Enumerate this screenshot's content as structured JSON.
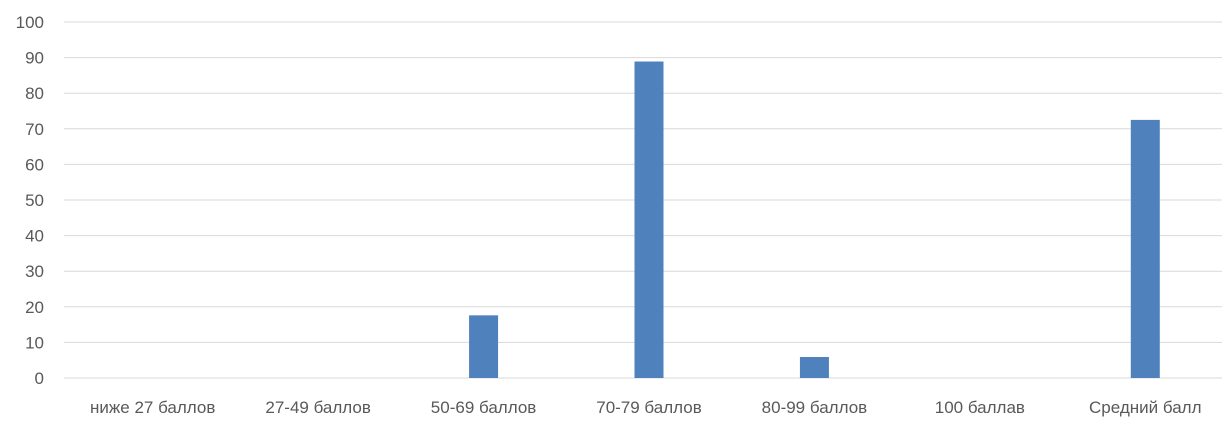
{
  "chart_data": {
    "type": "bar",
    "title": "",
    "xlabel": "",
    "ylabel": "",
    "categories": [
      "ниже 27 баллов",
      "27-49 баллов",
      "50-69 баллов",
      "70-79 баллов",
      "80-99 баллов",
      "100 баллав",
      "Средний балл"
    ],
    "values": [
      0,
      0,
      17.6,
      88.9,
      5.9,
      0,
      72.5
    ],
    "ylim": [
      0,
      100
    ],
    "yticks": [
      0,
      10,
      20,
      30,
      40,
      50,
      60,
      70,
      80,
      90,
      100
    ],
    "grid": true,
    "legend": "none",
    "colors": {
      "bar": "#4f81bd",
      "grid": "#d9d9d9",
      "text": "#595959"
    }
  }
}
